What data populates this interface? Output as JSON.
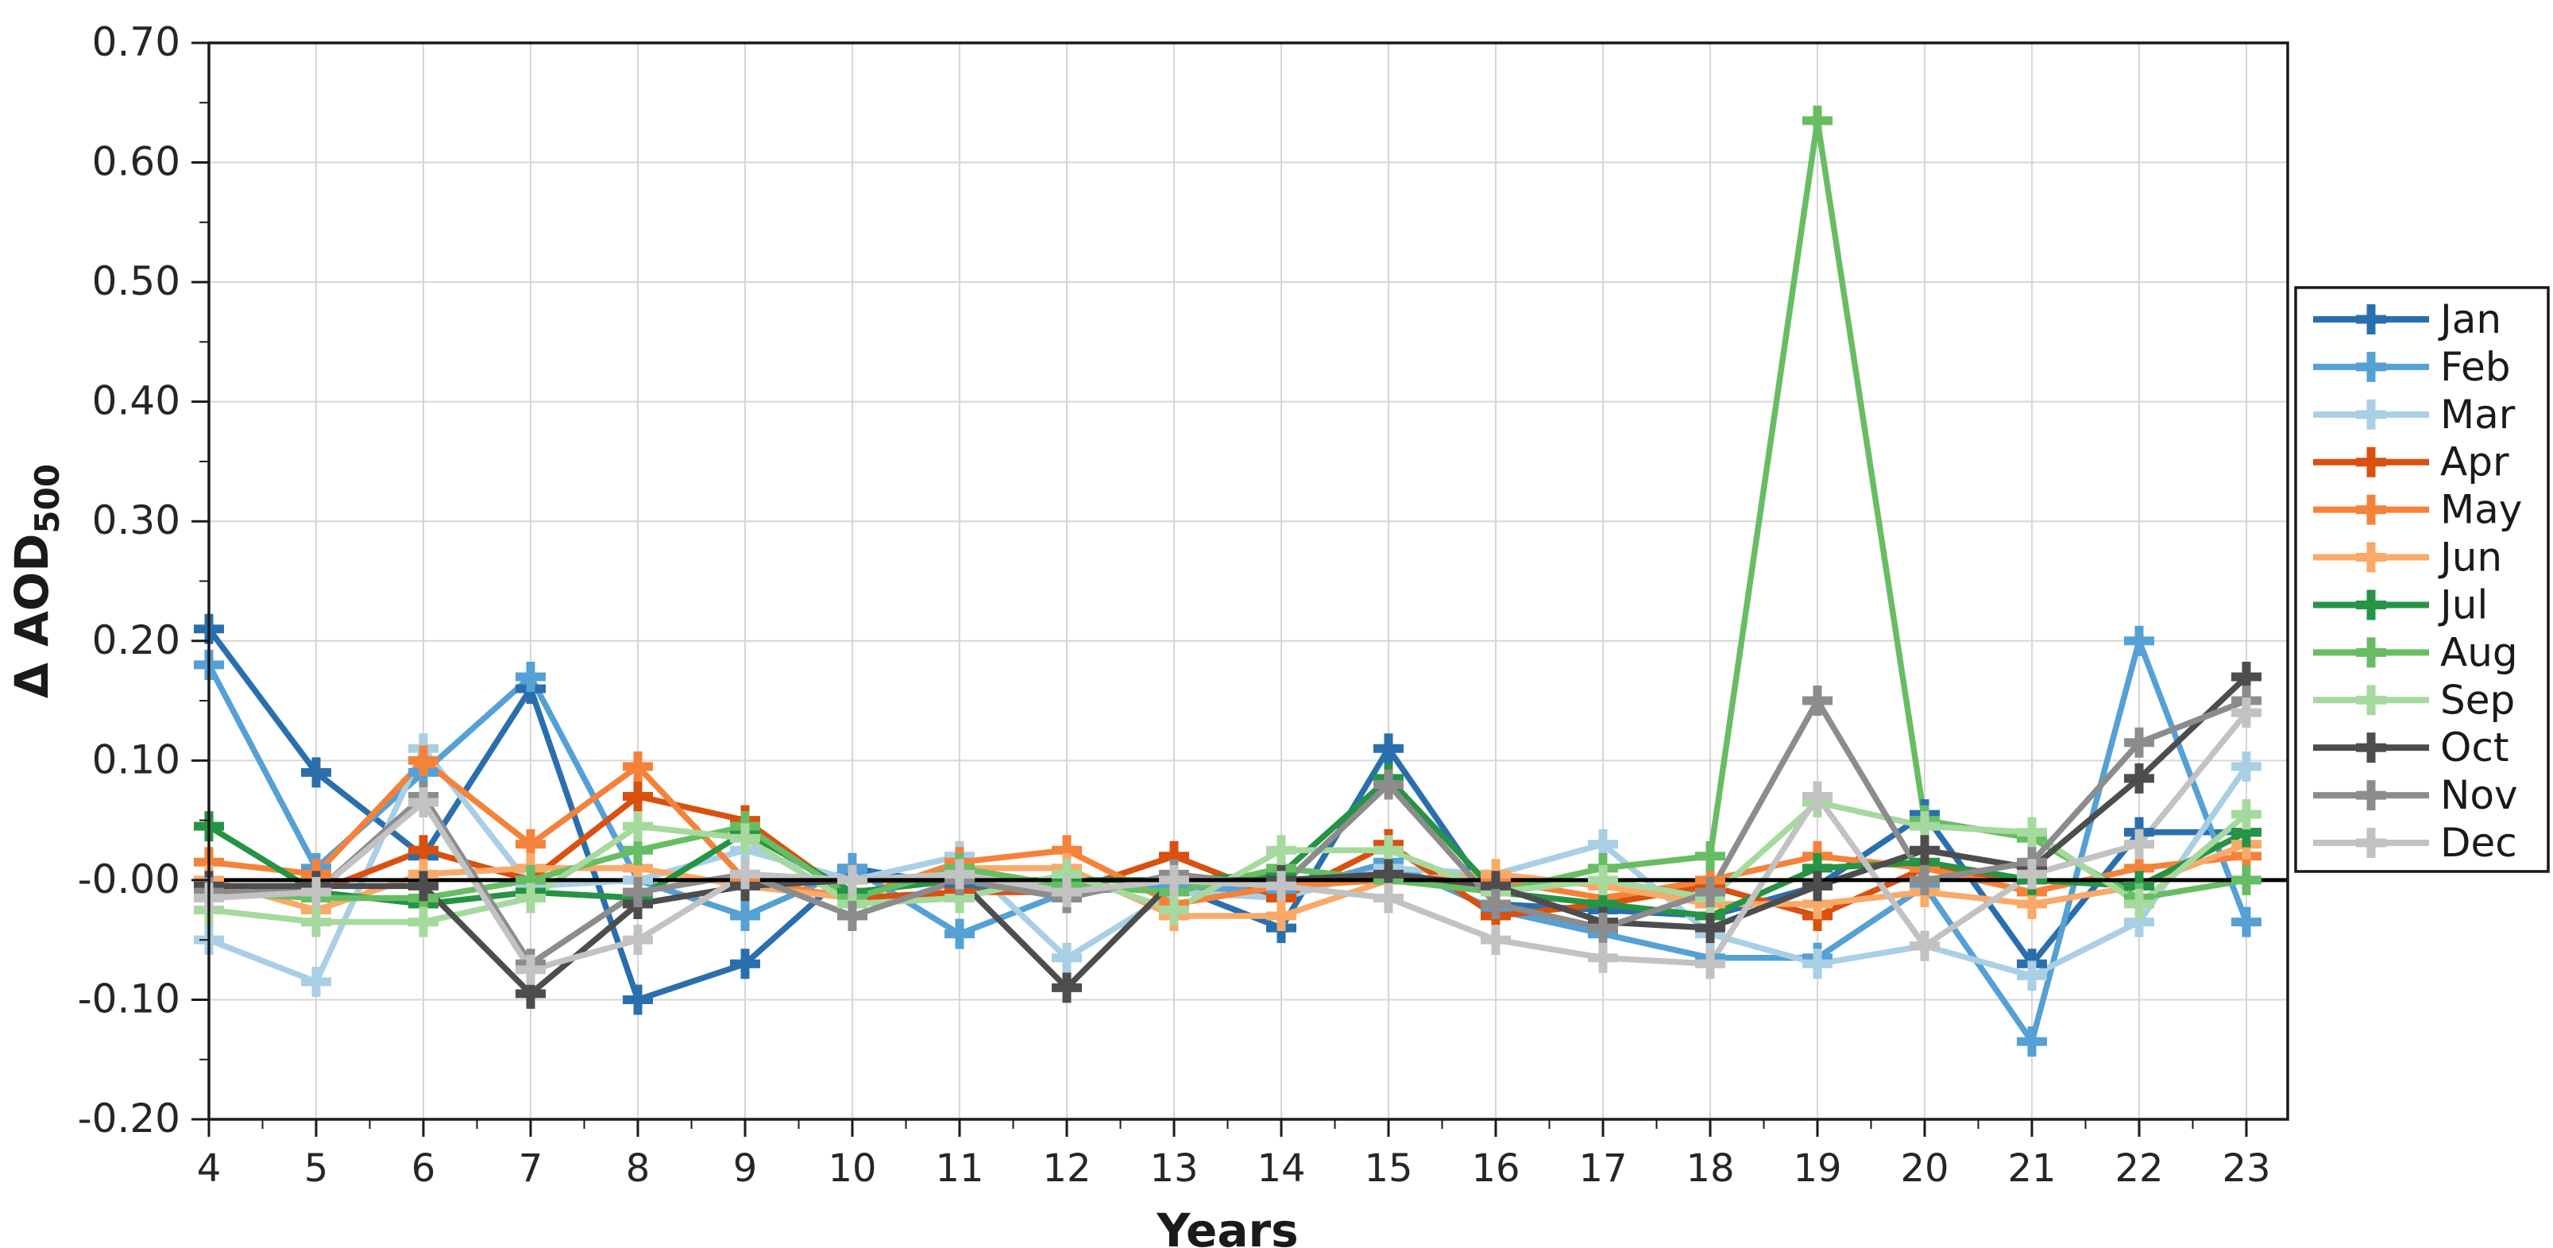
{
  "figure": {
    "background": "#ffffff",
    "axis_color": "#1a1a1a",
    "grid_color": "#d6d6d6",
    "zero_line_color": "#000000",
    "tick_label_color": "#262626",
    "legend_border_color": "#1a1a1a",
    "legend_background": "#ffffff"
  },
  "chart_data": {
    "type": "line",
    "title": "",
    "xlabel": "Years",
    "ylabel": "Δ AOD",
    "ylabel_subscript": "500",
    "marker": "plus",
    "grid": true,
    "zero_line": true,
    "legend_position": "right-outside",
    "x": [
      4,
      5,
      6,
      7,
      8,
      9,
      10,
      11,
      12,
      13,
      14,
      15,
      16,
      17,
      18,
      19,
      20,
      21,
      22,
      23
    ],
    "xlim": [
      4,
      23.4
    ],
    "ylim": [
      -0.2,
      0.7
    ],
    "ytick_labels": [
      "0.70",
      "0.60",
      "0.50",
      "0.40",
      "0.30",
      "0.20",
      "0.10",
      "-0.00",
      "-0.10",
      "-0.20"
    ],
    "ytick_values": [
      0.7,
      0.6,
      0.5,
      0.4,
      0.3,
      0.2,
      0.1,
      0.0,
      -0.1,
      -0.2
    ],
    "series": [
      {
        "name": "Jan",
        "color": "#2a6fad",
        "values": [
          0.21,
          0.09,
          0.02,
          0.16,
          -0.1,
          -0.07,
          0.01,
          -0.005,
          -0.01,
          -0.005,
          -0.04,
          0.11,
          -0.02,
          -0.025,
          -0.03,
          -0.005,
          0.055,
          -0.07,
          0.04,
          0.04
        ]
      },
      {
        "name": "Feb",
        "color": "#55a0d5",
        "values": [
          0.18,
          0.01,
          0.09,
          0.17,
          0.0,
          -0.03,
          0.01,
          -0.045,
          -0.01,
          -0.005,
          -0.01,
          0.015,
          -0.025,
          -0.045,
          -0.065,
          -0.065,
          -0.005,
          -0.135,
          0.2,
          -0.035
        ]
      },
      {
        "name": "Mar",
        "color": "#a9cfe5",
        "values": [
          -0.05,
          -0.085,
          0.11,
          -0.005,
          0.0,
          0.025,
          0.0,
          0.02,
          -0.065,
          -0.01,
          -0.015,
          0.01,
          0.005,
          0.03,
          -0.045,
          -0.07,
          -0.055,
          -0.08,
          -0.035,
          0.095
        ]
      },
      {
        "name": "Apr",
        "color": "#d9500f",
        "values": [
          -0.005,
          -0.01,
          0.025,
          0.0,
          0.07,
          0.05,
          -0.015,
          -0.01,
          -0.01,
          0.02,
          -0.015,
          0.03,
          -0.03,
          -0.02,
          -0.005,
          -0.03,
          0.01,
          0.0,
          -0.005,
          0.04
        ]
      },
      {
        "name": "May",
        "color": "#f5823a",
        "values": [
          0.015,
          0.005,
          0.1,
          0.03,
          0.095,
          0.0,
          -0.015,
          0.015,
          0.025,
          -0.02,
          -0.005,
          0.0,
          0.0,
          -0.015,
          0.0,
          0.02,
          0.01,
          -0.01,
          0.01,
          0.02
        ]
      },
      {
        "name": "Jun",
        "color": "#f9a968",
        "values": [
          0.0,
          -0.025,
          0.005,
          0.01,
          0.01,
          -0.005,
          -0.015,
          0.01,
          0.01,
          -0.03,
          -0.03,
          0.0,
          0.005,
          -0.005,
          -0.02,
          -0.02,
          -0.01,
          -0.02,
          -0.005,
          0.03
        ]
      },
      {
        "name": "Jul",
        "color": "#259444",
        "values": [
          0.045,
          -0.01,
          -0.02,
          -0.01,
          -0.015,
          0.04,
          -0.01,
          0.0,
          0.0,
          0.0,
          0.005,
          0.085,
          -0.01,
          -0.02,
          -0.03,
          0.01,
          0.015,
          0.0,
          -0.005,
          0.04
        ]
      },
      {
        "name": "Aug",
        "color": "#67bd63",
        "values": [
          -0.01,
          -0.015,
          -0.015,
          0.0,
          0.025,
          0.045,
          -0.015,
          0.01,
          -0.005,
          -0.01,
          0.01,
          0.0,
          -0.01,
          0.01,
          0.02,
          0.635,
          0.05,
          0.035,
          -0.015,
          0.0
        ]
      },
      {
        "name": "Sep",
        "color": "#a6d99e",
        "values": [
          -0.025,
          -0.035,
          -0.035,
          -0.015,
          0.045,
          0.035,
          -0.02,
          -0.015,
          0.005,
          -0.025,
          0.025,
          0.025,
          -0.01,
          0.0,
          -0.015,
          0.065,
          0.045,
          0.04,
          -0.02,
          0.055
        ]
      },
      {
        "name": "Oct",
        "color": "#4d4d4d",
        "values": [
          -0.005,
          -0.005,
          -0.005,
          -0.095,
          -0.02,
          -0.005,
          0.0,
          0.0,
          -0.09,
          0.0,
          0.0,
          0.005,
          -0.005,
          -0.035,
          -0.04,
          -0.005,
          0.025,
          0.01,
          0.085,
          0.17
        ]
      },
      {
        "name": "Nov",
        "color": "#8c8c8c",
        "values": [
          -0.01,
          -0.01,
          0.07,
          -0.07,
          -0.01,
          0.005,
          -0.03,
          0.0,
          -0.015,
          0.005,
          -0.005,
          0.08,
          -0.02,
          -0.04,
          -0.01,
          0.15,
          0.0,
          0.015,
          0.115,
          0.15
        ]
      },
      {
        "name": "Dec",
        "color": "#c2c2c2",
        "values": [
          -0.015,
          -0.01,
          0.065,
          -0.075,
          -0.05,
          0.005,
          0.0,
          0.005,
          -0.01,
          0.0,
          -0.005,
          -0.015,
          -0.05,
          -0.065,
          -0.07,
          0.07,
          -0.055,
          0.005,
          0.03,
          0.14
        ]
      }
    ],
    "legend_entries": [
      "Jan",
      "Feb",
      "Mar",
      "Apr",
      "May",
      "Jun",
      "Jul",
      "Aug",
      "Sep",
      "Oct",
      "Nov",
      "Dec"
    ]
  }
}
